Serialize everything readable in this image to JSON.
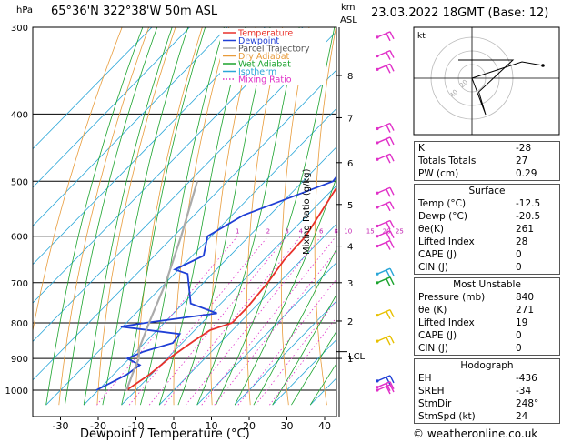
{
  "chart_data": [
    {
      "type": "line",
      "title": "65°36'N 322°38'W 50m ASL",
      "ylabel": "hPa",
      "xlabel": "Dewpoint / Temperature (°C)",
      "yaxis_right_label": "km ASL",
      "mixing_ratio_label": "Mixing Ratio (g/kg)",
      "pressure_ticks": [
        "300",
        "400",
        "500",
        "600",
        "700",
        "800",
        "900",
        "1000"
      ],
      "temp_ticks": [
        "-30",
        "-20",
        "-10",
        "0",
        "10",
        "20",
        "30",
        "40"
      ],
      "mixing_ratio_ticks": [
        "1",
        "2",
        "3",
        "4",
        "6",
        "8",
        "10",
        "15",
        "20",
        "25"
      ],
      "km_ticks": [
        "8",
        "7",
        "6",
        "5",
        "4",
        "3",
        "2",
        "1"
      ],
      "lcl_label": "LCL",
      "legend": [
        "Temperature",
        "Dewpoint",
        "Parcel Trajectory",
        "Dry Adiabat",
        "Wet Adiabat",
        "Isotherm",
        "Mixing Ratio"
      ],
      "series": [
        {
          "name": "Temperature",
          "color": "#e8312a",
          "points": [
            [
              -12.5,
              1000
            ],
            [
              -10.5,
              950
            ],
            [
              -9.5,
              900
            ],
            [
              -7.5,
              850
            ],
            [
              -6,
              820
            ],
            [
              -2,
              800
            ],
            [
              -2,
              760
            ],
            [
              -3,
              700
            ],
            [
              -4.5,
              650
            ],
            [
              -5,
              600
            ],
            [
              -10,
              500
            ],
            [
              -16,
              420
            ],
            [
              -26,
              300
            ]
          ]
        },
        {
          "name": "Dewpoint",
          "color": "#1f3fd6",
          "points": [
            [
              -20.5,
              1000
            ],
            [
              -16.5,
              950
            ],
            [
              -15.5,
              920
            ],
            [
              -20.5,
              900
            ],
            [
              -18,
              880
            ],
            [
              -12.5,
              855
            ],
            [
              -13,
              830
            ],
            [
              -30.5,
              810
            ],
            [
              -25,
              800
            ],
            [
              -8.5,
              775
            ],
            [
              -18,
              750
            ],
            [
              -26.5,
              680
            ],
            [
              -31,
              670
            ],
            [
              -27,
              640
            ],
            [
              -31,
              600
            ],
            [
              -27,
              560
            ],
            [
              -12,
              500
            ],
            [
              -14,
              450
            ],
            [
              -17,
              400
            ],
            [
              -20,
              360
            ],
            [
              -23,
              340
            ],
            [
              -26,
              310
            ],
            [
              -30,
              300
            ]
          ]
        },
        {
          "name": "Parcel Trajectory",
          "color": "#aaaaaa",
          "points": [
            [
              -12.5,
              1000
            ],
            [
              -15,
              950
            ],
            [
              -17.5,
              900
            ],
            [
              -20,
              870
            ],
            [
              -24,
              800
            ],
            [
              -30,
              700
            ],
            [
              -38,
              600
            ],
            [
              -48,
              500
            ]
          ]
        }
      ]
    },
    {
      "type": "scatter",
      "title": "kt",
      "ring_labels": [
        "20",
        "40"
      ],
      "points": [
        [
          0,
          0
        ],
        [
          20,
          -80
        ],
        [
          10,
          -30
        ],
        [
          60,
          40
        ],
        [
          -20,
          40
        ]
      ]
    }
  ],
  "header": {
    "datetime": "23.03.2022 18GMT (Base: 12)",
    "km_label_top": "km",
    "km_label_bottom": "ASL",
    "footer": "© weatheronline.co.uk"
  },
  "stats": {
    "basic": [
      {
        "label": "K",
        "value": "-28"
      },
      {
        "label": "Totals Totals",
        "value": "27"
      },
      {
        "label": "PW (cm)",
        "value": "0.29"
      }
    ],
    "surface_title": "Surface",
    "surface": [
      {
        "label": "Temp (°C)",
        "value": "-12.5"
      },
      {
        "label": "Dewp (°C)",
        "value": "-20.5"
      },
      {
        "label": "θe(K)",
        "value": "261"
      },
      {
        "label": "Lifted Index",
        "value": "28"
      },
      {
        "label": "CAPE (J)",
        "value": "0"
      },
      {
        "label": "CIN (J)",
        "value": "0"
      }
    ],
    "mu_title": "Most Unstable",
    "mu": [
      {
        "label": "Pressure (mb)",
        "value": "840"
      },
      {
        "label": "θe (K)",
        "value": "271"
      },
      {
        "label": "Lifted Index",
        "value": "19"
      },
      {
        "label": "CAPE (J)",
        "value": "0"
      },
      {
        "label": "CIN (J)",
        "value": "0"
      }
    ],
    "hodo_title": "Hodograph",
    "hodo": [
      {
        "label": "EH",
        "value": "-436"
      },
      {
        "label": "SREH",
        "value": "-34"
      },
      {
        "label": "StmDir",
        "value": "248°"
      },
      {
        "label": "StmSpd (kt)",
        "value": "24"
      }
    ]
  }
}
